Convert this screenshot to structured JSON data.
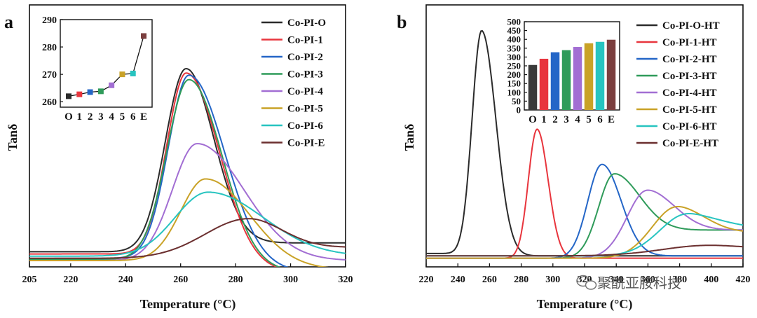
{
  "chart_data": [
    {
      "panel": "a",
      "type": "line",
      "xlabel": "Temperature (°C)",
      "ylabel": "Tanδ",
      "xlim": [
        205,
        320
      ],
      "xticks": [
        "205",
        "220",
        "240",
        "260",
        "280",
        "300",
        "320"
      ],
      "y_scale": "arbitrary (no ticks)",
      "series": [
        {
          "name": "Co-PI-O",
          "color": "#2b2b2b",
          "peak_x": 262,
          "peak_height": 0.87,
          "base_left": 0.04,
          "base_right": 0.08,
          "width_left": 7.5,
          "width_right": 10
        },
        {
          "name": "Co-PI-1",
          "color": "#e8353d",
          "peak_x": 262,
          "peak_height": 0.85,
          "base_left": 0.03,
          "base_right": -0.05,
          "width_left": 7,
          "width_right": 12
        },
        {
          "name": "Co-PI-2",
          "color": "#2466c7",
          "peak_x": 263,
          "peak_height": 0.84,
          "base_left": 0.01,
          "base_right": -0.05,
          "width_left": 7.5,
          "width_right": 13
        },
        {
          "name": "Co-PI-3",
          "color": "#2f9b5a",
          "peak_x": 263,
          "peak_height": 0.82,
          "base_left": 0.005,
          "base_right": -0.05,
          "width_left": 8,
          "width_right": 12
        },
        {
          "name": "Co-PI-4",
          "color": "#a26ed3",
          "peak_x": 266,
          "peak_height": 0.53,
          "base_left": 0.0,
          "base_right": 0.0,
          "width_left": 9,
          "width_right": 17
        },
        {
          "name": "Co-PI-5",
          "color": "#c9a227",
          "peak_x": 269,
          "peak_height": 0.37,
          "base_left": 0.0,
          "base_right": -0.04,
          "width_left": 9,
          "width_right": 16
        },
        {
          "name": "Co-PI-6",
          "color": "#27c4c0",
          "peak_x": 270,
          "peak_height": 0.31,
          "base_left": 0.02,
          "base_right": 0.02,
          "width_left": 12,
          "width_right": 20
        },
        {
          "name": "Co-PI-E",
          "color": "#6b2f2f",
          "peak_x": 285,
          "peak_height": 0.19,
          "base_left": 0.01,
          "base_right": 0.06,
          "width_left": 16,
          "width_right": 12
        }
      ],
      "inset": {
        "type": "scatter-line",
        "ylim": [
          258,
          290
        ],
        "yticks": [
          "260",
          "270",
          "280",
          "290"
        ],
        "categories": [
          "O",
          "1",
          "2",
          "3",
          "4",
          "5",
          "6",
          "E"
        ],
        "values": [
          262,
          262.7,
          263.5,
          263.8,
          266,
          270,
          270.3,
          284
        ],
        "colors": [
          "#2b2b2b",
          "#e8353d",
          "#2466c7",
          "#2f9b5a",
          "#a26ed3",
          "#c9a227",
          "#27c4c0",
          "#7b3f3f"
        ]
      }
    },
    {
      "panel": "b",
      "type": "line",
      "xlabel": "Temperature (°C)",
      "ylabel": "Tanδ",
      "xlim": [
        220,
        420
      ],
      "xticks": [
        "220",
        "240",
        "260",
        "280",
        "300",
        "320",
        "340",
        "360",
        "380",
        "400",
        "420"
      ],
      "y_scale": "arbitrary (no ticks)",
      "series": [
        {
          "name": "Co-PI-O-HT",
          "color": "#2b2b2b",
          "peak_x": 255,
          "peak_height": 0.98,
          "base_left": 0.03,
          "base_right": 0.02,
          "width_left": 6,
          "width_right": 9
        },
        {
          "name": "Co-PI-1-HT",
          "color": "#e8353d",
          "peak_x": 290,
          "peak_height": 0.56,
          "base_left": 0.01,
          "base_right": 0.01,
          "width_left": 5.5,
          "width_right": 7
        },
        {
          "name": "Co-PI-2-HT",
          "color": "#2466c7",
          "peak_x": 331,
          "peak_height": 0.41,
          "base_left": 0.01,
          "base_right": 0.02,
          "width_left": 9,
          "width_right": 12
        },
        {
          "name": "Co-PI-3-HT",
          "color": "#2f9b5a",
          "peak_x": 339,
          "peak_height": 0.37,
          "base_left": 0.01,
          "base_right": 0.13,
          "width_left": 10,
          "width_right": 16
        },
        {
          "name": "Co-PI-4-HT",
          "color": "#a26ed3",
          "peak_x": 360,
          "peak_height": 0.3,
          "base_left": 0.01,
          "base_right": 0.13,
          "width_left": 13,
          "width_right": 17
        },
        {
          "name": "Co-PI-5-HT",
          "color": "#c9a227",
          "peak_x": 379,
          "peak_height": 0.23,
          "base_left": 0.01,
          "base_right": 0.12,
          "width_left": 16,
          "width_right": 17
        },
        {
          "name": "Co-PI-6-HT",
          "color": "#27c4c0",
          "peak_x": 386,
          "peak_height": 0.2,
          "base_left": 0.02,
          "base_right": 0.14,
          "width_left": 18,
          "width_right": 19
        },
        {
          "name": "Co-PI-E-HT",
          "color": "#6b2f2f",
          "peak_x": 400,
          "peak_height": 0.065,
          "base_left": 0.02,
          "base_right": 0.05,
          "width_left": 30,
          "width_right": 22
        }
      ],
      "inset": {
        "type": "bar",
        "ylim": [
          0,
          500
        ],
        "yticks": [
          "0",
          "50",
          "100",
          "150",
          "200",
          "250",
          "300",
          "350",
          "400",
          "450",
          "500"
        ],
        "categories": [
          "O",
          "1",
          "2",
          "3",
          "4",
          "5",
          "6",
          "E"
        ],
        "values": [
          255,
          290,
          327,
          339,
          357,
          378,
          386,
          398
        ],
        "colors": [
          "#3a3a3a",
          "#e8353d",
          "#2466c7",
          "#2f9b5a",
          "#a26ed3",
          "#c9a227",
          "#27c4c0",
          "#7b3f3f"
        ]
      }
    }
  ],
  "panel_a_label": "a",
  "panel_b_label": "b",
  "watermark": "聚酰亚胺科技",
  "watermark_icon": "wechat-icon"
}
